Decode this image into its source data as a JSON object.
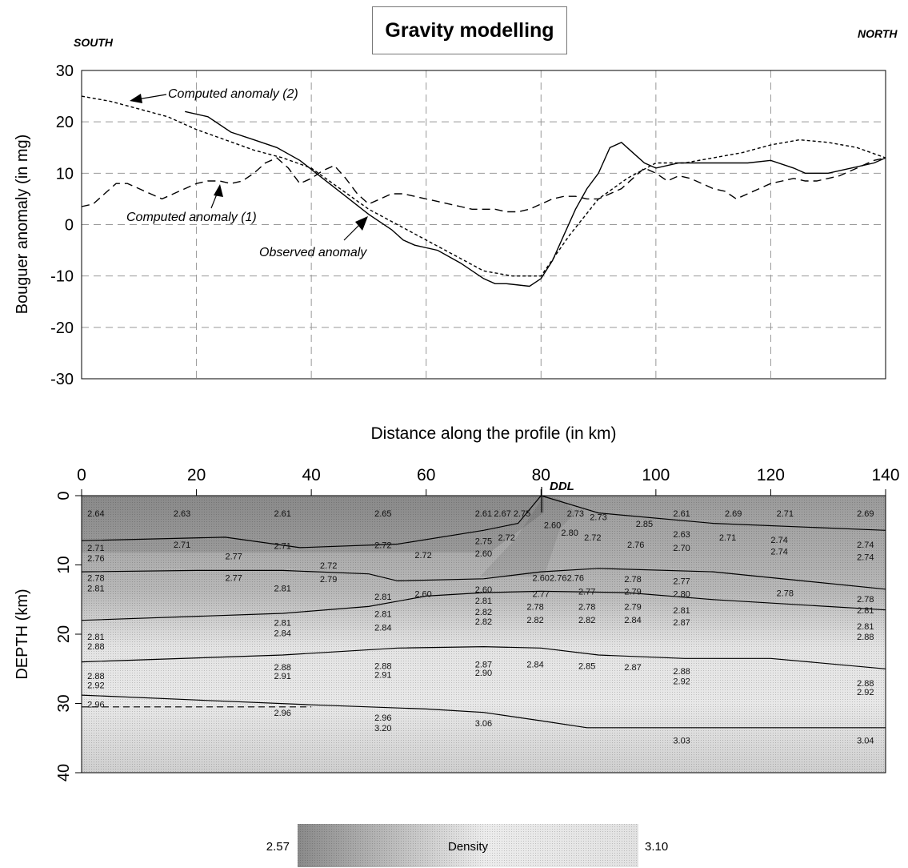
{
  "chart_data": [
    {
      "type": "line",
      "title": "Gravity modelling",
      "direction_left": "SOUTH",
      "direction_right": "NORTH",
      "xlabel": "Distance along the profile (in km)",
      "ylabel": "Bouguer anomaly (in mg)",
      "xlim": [
        0,
        140
      ],
      "ylim": [
        -30,
        30
      ],
      "y_ticks": [
        "30",
        "20",
        "10",
        "0",
        "-10",
        "-20",
        "-30"
      ],
      "grid": true,
      "series": [
        {
          "name": "Observed anomaly",
          "style": "solid",
          "x": [
            18,
            22,
            26,
            30,
            34,
            38,
            42,
            46,
            50,
            54,
            56,
            58,
            62,
            66,
            70,
            72,
            74,
            78,
            80,
            82,
            84,
            86,
            88,
            90,
            92,
            94,
            96,
            98,
            100,
            104,
            108,
            112,
            116,
            120,
            124,
            126,
            130,
            134,
            138,
            140
          ],
          "y": [
            22,
            21,
            18,
            16.5,
            15,
            12.5,
            9,
            5.5,
            2,
            -1,
            -3,
            -4,
            -5,
            -7.5,
            -10.5,
            -11.5,
            -11.5,
            -12,
            -10.5,
            -7,
            -2,
            3,
            7,
            10,
            15,
            16,
            14,
            12,
            11,
            12,
            12,
            12,
            12,
            12.5,
            11,
            10,
            10,
            11,
            12,
            13
          ]
        },
        {
          "name": "Computed anomaly (1)",
          "style": "dashed",
          "x": [
            0,
            2,
            4,
            6,
            8,
            10,
            12,
            14,
            16,
            18,
            20,
            22,
            24,
            26,
            28,
            30,
            32,
            34,
            36,
            38,
            40,
            42,
            44,
            46,
            48,
            50,
            52,
            54,
            56,
            58,
            60,
            62,
            64,
            66,
            68,
            70,
            72,
            74,
            76,
            78,
            80,
            82,
            84,
            86,
            88,
            90,
            92,
            94,
            96,
            98,
            100,
            102,
            104,
            106,
            108,
            110,
            112,
            114,
            116,
            118,
            120,
            122,
            124,
            126,
            128,
            130,
            132,
            134,
            136,
            138,
            140
          ],
          "y": [
            3.5,
            4,
            6,
            8,
            8,
            7,
            6,
            5,
            6,
            7,
            8,
            8.5,
            8.5,
            8,
            8.5,
            10,
            12,
            13,
            11,
            8,
            9,
            10.5,
            11.5,
            9,
            6,
            4,
            5,
            6,
            6,
            5.5,
            5,
            4.5,
            4,
            3.5,
            3,
            3,
            3,
            2.5,
            2.5,
            3,
            4,
            5,
            5.5,
            5.5,
            5,
            5,
            6,
            7,
            9,
            11,
            10,
            8.5,
            9.5,
            9,
            8,
            7,
            6.5,
            5,
            6,
            7,
            8,
            8.5,
            9,
            8.5,
            8.5,
            9,
            9.5,
            10.5,
            11.5,
            12.5,
            13
          ]
        },
        {
          "name": "Computed anomaly (2)",
          "style": "dotted",
          "x": [
            0,
            5,
            10,
            15,
            20,
            25,
            30,
            35,
            40,
            45,
            50,
            55,
            60,
            65,
            70,
            75,
            80,
            85,
            90,
            95,
            100,
            105,
            110,
            115,
            120,
            125,
            130,
            135,
            140
          ],
          "y": [
            25,
            24,
            22.5,
            21,
            18.5,
            16.5,
            14.5,
            13,
            11,
            7,
            3,
            0,
            -3,
            -6,
            -9,
            -10,
            -10,
            -2,
            5,
            9,
            12,
            12,
            13,
            14,
            15.5,
            16.5,
            16,
            15,
            13
          ]
        }
      ],
      "annotations": [
        "Computed anomaly (2)",
        "Computed anomaly (1)",
        "Observed anomaly"
      ]
    },
    {
      "type": "heatmap",
      "xlabel": "",
      "ylabel": "DEPTH (km)",
      "xlim": [
        0,
        140
      ],
      "ylim": [
        0,
        40
      ],
      "x_ticks": [
        "0",
        "20",
        "40",
        "60",
        "80",
        "100",
        "120",
        "140"
      ],
      "y_ticks": [
        "0",
        "10",
        "20",
        "30",
        "40"
      ],
      "marker_label": "DDL",
      "marker_x": 80,
      "boundaries": [
        {
          "x": [
            0,
            25,
            38,
            55,
            70,
            76,
            80,
            90,
            110,
            140
          ],
          "y": [
            6.5,
            6,
            7.5,
            7,
            5,
            4,
            0,
            2.5,
            4,
            5
          ]
        },
        {
          "x": [
            0,
            20,
            35,
            50,
            55,
            70,
            80,
            90,
            110,
            140
          ],
          "y": [
            11,
            10.8,
            10.8,
            11.3,
            12.3,
            12,
            11,
            10.5,
            11,
            13.5
          ]
        },
        {
          "x": [
            0,
            35,
            50,
            60,
            70,
            80,
            95,
            110,
            140
          ],
          "y": [
            18,
            17,
            16,
            14.5,
            14,
            13.8,
            14,
            15,
            16.5
          ]
        },
        {
          "x": [
            0,
            35,
            55,
            70,
            80,
            90,
            105,
            120,
            140
          ],
          "y": [
            24,
            23,
            22,
            21.8,
            22,
            23,
            23.5,
            23.5,
            25
          ]
        },
        {
          "x": [
            0,
            20,
            40,
            60,
            70,
            80,
            88,
            100,
            120,
            140
          ],
          "y": [
            28.8,
            29.5,
            30.2,
            30.8,
            31.3,
            32.5,
            33.5,
            33.5,
            33.5,
            33.5
          ]
        },
        {
          "style": "dashed",
          "x": [
            0,
            40
          ],
          "y": [
            30.5,
            30.5
          ]
        }
      ],
      "density_labels": [
        {
          "t": "2.64",
          "x": 1,
          "y": 3
        },
        {
          "t": "2.63",
          "x": 16,
          "y": 3
        },
        {
          "t": "2.61",
          "x": 33.5,
          "y": 3
        },
        {
          "t": "2.65",
          "x": 51,
          "y": 3
        },
        {
          "t": "2.61",
          "x": 68.5,
          "y": 3
        },
        {
          "t": "2.67",
          "x": 71.8,
          "y": 3
        },
        {
          "t": "2.75",
          "x": 75.2,
          "y": 3
        },
        {
          "t": "2.73",
          "x": 84.5,
          "y": 3
        },
        {
          "t": "2.73",
          "x": 88.5,
          "y": 3.5
        },
        {
          "t": "2.85",
          "x": 96.5,
          "y": 4.5
        },
        {
          "t": "2.61",
          "x": 103,
          "y": 3
        },
        {
          "t": "2.69",
          "x": 112,
          "y": 3
        },
        {
          "t": "2.71",
          "x": 121,
          "y": 3
        },
        {
          "t": "2.69",
          "x": 135,
          "y": 3
        },
        {
          "t": "2.60",
          "x": 80.5,
          "y": 4.7
        },
        {
          "t": "2.80",
          "x": 83.5,
          "y": 5.8
        },
        {
          "t": "2.72",
          "x": 87.5,
          "y": 6.5
        },
        {
          "t": "2.63",
          "x": 103,
          "y": 6
        },
        {
          "t": "2.71",
          "x": 111,
          "y": 6.5
        },
        {
          "t": "2.74",
          "x": 120,
          "y": 6.8
        },
        {
          "t": "2.74",
          "x": 135,
          "y": 7.5
        },
        {
          "t": "2.75",
          "x": 68.5,
          "y": 7
        },
        {
          "t": "2.72",
          "x": 72.5,
          "y": 6.5
        },
        {
          "t": "2.76",
          "x": 95,
          "y": 7.5
        },
        {
          "t": "2.70",
          "x": 103,
          "y": 8
        },
        {
          "t": "2.74",
          "x": 120,
          "y": 8.5
        },
        {
          "t": "2.74",
          "x": 135,
          "y": 9.3
        },
        {
          "t": "2.71",
          "x": 1,
          "y": 8
        },
        {
          "t": "2.71",
          "x": 16,
          "y": 7.5
        },
        {
          "t": "2.71",
          "x": 33.5,
          "y": 7.7
        },
        {
          "t": "2.72",
          "x": 51,
          "y": 7.6
        },
        {
          "t": "2.72",
          "x": 58,
          "y": 9
        },
        {
          "t": "2.60",
          "x": 68.5,
          "y": 8.8
        },
        {
          "t": "2.76",
          "x": 1,
          "y": 9.5
        },
        {
          "t": "2.77",
          "x": 25,
          "y": 9.2
        },
        {
          "t": "2.72",
          "x": 41.5,
          "y": 10.5
        },
        {
          "t": "2.78",
          "x": 1,
          "y": 12.3
        },
        {
          "t": "2.77",
          "x": 25,
          "y": 12.3
        },
        {
          "t": "2.79",
          "x": 41.5,
          "y": 12.5
        },
        {
          "t": "2.60",
          "x": 78.5,
          "y": 12.3
        },
        {
          "t": "2.76",
          "x": 81.5,
          "y": 12.3
        },
        {
          "t": "2.76",
          "x": 84.5,
          "y": 12.3
        },
        {
          "t": "2.78",
          "x": 94.5,
          "y": 12.5
        },
        {
          "t": "2.77",
          "x": 103,
          "y": 12.8
        },
        {
          "t": "2.81",
          "x": 1,
          "y": 13.8
        },
        {
          "t": "2.81",
          "x": 33.5,
          "y": 13.8
        },
        {
          "t": "2.81",
          "x": 51,
          "y": 15
        },
        {
          "t": "2.60",
          "x": 58,
          "y": 14.6
        },
        {
          "t": "2.60",
          "x": 68.5,
          "y": 14
        },
        {
          "t": "2.77",
          "x": 78.5,
          "y": 14.6
        },
        {
          "t": "2.77",
          "x": 86.5,
          "y": 14.3
        },
        {
          "t": "2.79",
          "x": 94.5,
          "y": 14.3
        },
        {
          "t": "2.80",
          "x": 103,
          "y": 14.6
        },
        {
          "t": "2.78",
          "x": 121,
          "y": 14.5
        },
        {
          "t": "2.78",
          "x": 135,
          "y": 15.4
        },
        {
          "t": "2.81",
          "x": 68.5,
          "y": 15.6
        },
        {
          "t": "2.82",
          "x": 68.5,
          "y": 17.2
        },
        {
          "t": "2.78",
          "x": 77.5,
          "y": 16.5
        },
        {
          "t": "2.78",
          "x": 86.5,
          "y": 16.5
        },
        {
          "t": "2.79",
          "x": 94.5,
          "y": 16.5
        },
        {
          "t": "2.81",
          "x": 103,
          "y": 17
        },
        {
          "t": "2.81",
          "x": 135,
          "y": 17
        },
        {
          "t": "2.81",
          "x": 51,
          "y": 17.5
        },
        {
          "t": "2.81",
          "x": 33.5,
          "y": 18.8
        },
        {
          "t": "2.82",
          "x": 68.5,
          "y": 18.6
        },
        {
          "t": "2.82",
          "x": 77.5,
          "y": 18.4
        },
        {
          "t": "2.82",
          "x": 86.5,
          "y": 18.4
        },
        {
          "t": "2.84",
          "x": 94.5,
          "y": 18.4
        },
        {
          "t": "2.87",
          "x": 103,
          "y": 18.7
        },
        {
          "t": "2.84",
          "x": 51,
          "y": 19.5
        },
        {
          "t": "2.84",
          "x": 33.5,
          "y": 20.3
        },
        {
          "t": "2.81",
          "x": 1,
          "y": 20.8
        },
        {
          "t": "2.81",
          "x": 135,
          "y": 19.3
        },
        {
          "t": "2.88",
          "x": 1,
          "y": 22.2
        },
        {
          "t": "2.88",
          "x": 135,
          "y": 20.8
        },
        {
          "t": "2.88",
          "x": 33.5,
          "y": 25.2
        },
        {
          "t": "2.88",
          "x": 51,
          "y": 25
        },
        {
          "t": "2.87",
          "x": 68.5,
          "y": 24.8
        },
        {
          "t": "2.84",
          "x": 77.5,
          "y": 24.8
        },
        {
          "t": "2.85",
          "x": 86.5,
          "y": 25
        },
        {
          "t": "2.87",
          "x": 94.5,
          "y": 25.2
        },
        {
          "t": "2.88",
          "x": 103,
          "y": 25.8
        },
        {
          "t": "2.91",
          "x": 33.5,
          "y": 26.5
        },
        {
          "t": "2.91",
          "x": 51,
          "y": 26.3
        },
        {
          "t": "2.90",
          "x": 68.5,
          "y": 26
        },
        {
          "t": "2.92",
          "x": 103,
          "y": 27.2
        },
        {
          "t": "2.88",
          "x": 1,
          "y": 26.5
        },
        {
          "t": "2.92",
          "x": 1,
          "y": 27.8
        },
        {
          "t": "2.88",
          "x": 135,
          "y": 27.5
        },
        {
          "t": "2.92",
          "x": 135,
          "y": 28.8
        },
        {
          "t": "2.96",
          "x": 1,
          "y": 30.6
        },
        {
          "t": "2.96",
          "x": 33.5,
          "y": 31.8
        },
        {
          "t": "2.96",
          "x": 51,
          "y": 32.5
        },
        {
          "t": "3.20",
          "x": 51,
          "y": 34
        },
        {
          "t": "3.06",
          "x": 68.5,
          "y": 33.3
        },
        {
          "t": "3.03",
          "x": 103,
          "y": 35.8
        },
        {
          "t": "3.04",
          "x": 135,
          "y": 35.8
        }
      ]
    }
  ],
  "colorbar": {
    "min_label": "2.57",
    "max_label": "3.10",
    "label": "Density",
    "dark_color": "#8a8a8a",
    "light_color": "#ececec"
  }
}
